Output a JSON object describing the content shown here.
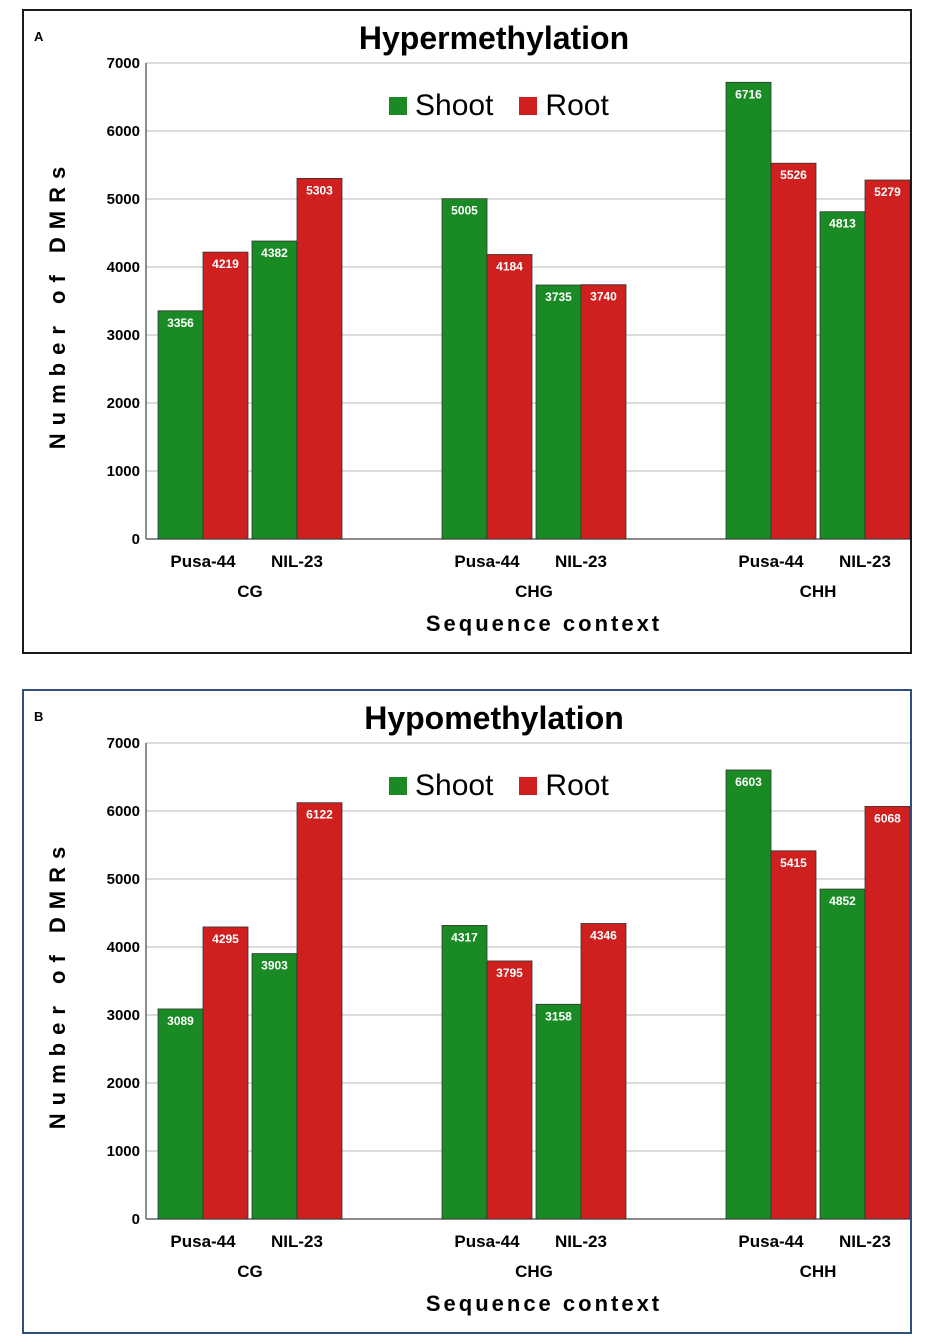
{
  "colors": {
    "shoot": "#1a8a24",
    "root": "#d01f1f",
    "grid": "#b8b8b8"
  },
  "panels": [
    {
      "letter": "A",
      "chart_data": {
        "type": "bar",
        "title": "Hypermethylation",
        "ylabel": "Number of DMRs",
        "xlabel": "Sequence context",
        "ylim": [
          0,
          7000
        ],
        "yticks": [
          0,
          1000,
          2000,
          3000,
          4000,
          5000,
          6000,
          7000
        ],
        "groups": [
          {
            "name": "CG",
            "subcategories": [
              "Pusa-44",
              "NIL-23"
            ]
          },
          {
            "name": "CHG",
            "subcategories": [
              "Pusa-44",
              "NIL-23"
            ]
          },
          {
            "name": "CHH",
            "subcategories": [
              "Pusa-44",
              "NIL-23"
            ]
          }
        ],
        "legend": [
          "Shoot",
          "Root"
        ],
        "series": [
          {
            "name": "Shoot",
            "values": [
              [
                3356,
                4382
              ],
              [
                5005,
                3735
              ],
              [
                6716,
                4813
              ]
            ]
          },
          {
            "name": "Root",
            "values": [
              [
                4219,
                5303
              ],
              [
                4184,
                3740
              ],
              [
                5526,
                5279
              ]
            ]
          }
        ]
      }
    },
    {
      "letter": "B",
      "chart_data": {
        "type": "bar",
        "title": "Hypomethylation",
        "ylabel": "Number of DMRs",
        "xlabel": "Sequence context",
        "ylim": [
          0,
          7000
        ],
        "yticks": [
          0,
          1000,
          2000,
          3000,
          4000,
          5000,
          6000,
          7000
        ],
        "groups": [
          {
            "name": "CG",
            "subcategories": [
              "Pusa-44",
              "NIL-23"
            ]
          },
          {
            "name": "CHG",
            "subcategories": [
              "Pusa-44",
              "NIL-23"
            ]
          },
          {
            "name": "CHH",
            "subcategories": [
              "Pusa-44",
              "NIL-23"
            ]
          }
        ],
        "legend": [
          "Shoot",
          "Root"
        ],
        "series": [
          {
            "name": "Shoot",
            "values": [
              [
                3089,
                3903
              ],
              [
                4317,
                3158
              ],
              [
                6603,
                4852
              ]
            ]
          },
          {
            "name": "Root",
            "values": [
              [
                4295,
                6122
              ],
              [
                3795,
                4346
              ],
              [
                5415,
                6068
              ]
            ]
          }
        ]
      }
    }
  ]
}
